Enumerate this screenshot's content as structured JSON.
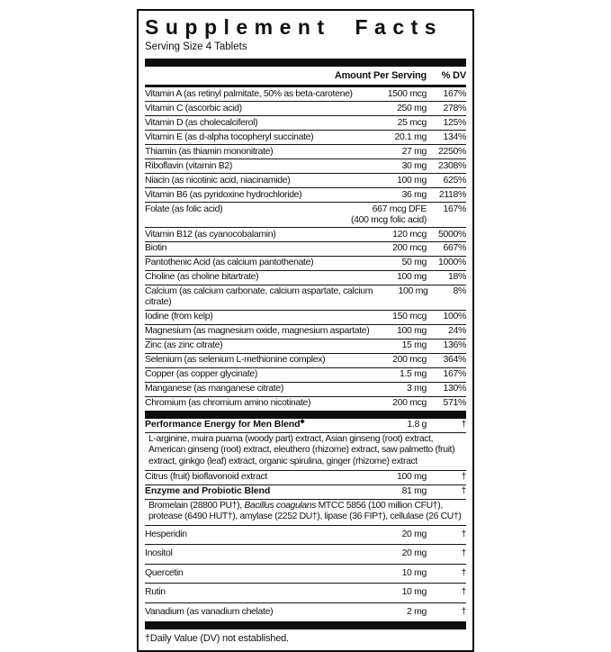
{
  "label": {
    "title": "Supplement Facts",
    "serving_size": "Serving Size 4 Tablets",
    "columns": {
      "amount": "Amount Per Serving",
      "dv": "% DV"
    },
    "footnote": "†Daily Value (DV) not established.",
    "colors": {
      "ink": "#0d0d0d",
      "background": "#ffffff"
    }
  },
  "rows": [
    {
      "t": "n",
      "sep": "none",
      "name": "Vitamin A (as retinyl palmitate, 50% as beta-carotene)",
      "amt": "1500 mcg",
      "dv": "167%"
    },
    {
      "t": "n",
      "sep": "hair",
      "name": "Vitamin C (ascorbic acid)",
      "amt": "250 mg",
      "dv": "278%"
    },
    {
      "t": "n",
      "sep": "hair",
      "name": "Vitamin D (as cholecalciferol)",
      "amt": "25 mcg",
      "dv": "125%"
    },
    {
      "t": "n",
      "sep": "hair",
      "name": "Vitamin E (as d-alpha tocopheryl succinate)",
      "amt": "20.1 mg",
      "dv": "134%"
    },
    {
      "t": "n",
      "sep": "hair",
      "name": "Thiamin (as thiamin mononitrate)",
      "amt": "27 mg",
      "dv": "2250%"
    },
    {
      "t": "n",
      "sep": "hair",
      "name": "Riboflavin (vitamin B2)",
      "amt": "30 mg",
      "dv": "2308%"
    },
    {
      "t": "n",
      "sep": "hair",
      "name": "Niacin (as nicotinic acid, niacinamide)",
      "amt": "100 mg",
      "dv": "625%"
    },
    {
      "t": "n",
      "sep": "hair",
      "name": "Vitamin B6 (as pyridoxine hydrochloride)",
      "amt": "36 mg",
      "dv": "2118%"
    },
    {
      "t": "n",
      "sep": "hair",
      "name": "Folate (as folic acid)",
      "amt": "667 mcg DFE",
      "amt2": "(400 mcg folic acid)",
      "dv": "167%"
    },
    {
      "t": "n",
      "sep": "hair",
      "name": "Vitamin B12 (as cyanocobalamin)",
      "amt": "120 mcg",
      "dv": "5000%"
    },
    {
      "t": "n",
      "sep": "hair",
      "name": "Biotin",
      "amt": "200 mcg",
      "dv": "667%"
    },
    {
      "t": "n",
      "sep": "hair",
      "name": "Pantothenic Acid (as calcium pantothenate)",
      "amt": "50 mg",
      "dv": "1000%"
    },
    {
      "t": "n",
      "sep": "hair",
      "name": "Choline (as choline bitartrate)",
      "amt": "100 mg",
      "dv": "18%"
    },
    {
      "t": "n",
      "sep": "hair",
      "name": "Calcium (as calcium carbonate, calcium aspartate, calcium citrate)",
      "amt": "100 mg",
      "dv": "8%"
    },
    {
      "t": "n",
      "sep": "hair",
      "name": "Iodine (from kelp)",
      "amt": "150 mcg",
      "dv": "100%"
    },
    {
      "t": "n",
      "sep": "hair",
      "name": "Magnesium (as magnesium oxide, magnesium aspartate)",
      "amt": "100 mg",
      "dv": "24%"
    },
    {
      "t": "n",
      "sep": "hair",
      "name": "Zinc (as zinc citrate)",
      "amt": "15 mg",
      "dv": "136%"
    },
    {
      "t": "n",
      "sep": "hair",
      "name": "Selenium (as selenium L-methionine complex)",
      "amt": "200 mcg",
      "dv": "364%"
    },
    {
      "t": "n",
      "sep": "hair",
      "name": "Copper (as copper glycinate)",
      "amt": "1.5 mg",
      "dv": "167%"
    },
    {
      "t": "n",
      "sep": "hair",
      "name": "Manganese (as manganese citrate)",
      "amt": "3 mg",
      "dv": "130%"
    },
    {
      "t": "n",
      "sep": "hair",
      "name": "Chromium (as chromium amino nicotinate)",
      "amt": "200 mcg",
      "dv": "571%"
    },
    {
      "t": "n",
      "sep": "thick",
      "bold": true,
      "name": "Performance Energy for Men Blend",
      "marker": "◆",
      "amt": "1.8 g",
      "dv": "†"
    },
    {
      "t": "s",
      "sep": "hair",
      "text": "L-arginine, muira puama (woody part) extract, Asian ginseng (root) extract, American ginseng (root) extract, eleuthero (rhizome) extract, saw palmetto (fruit) extract, ginkgo (leaf) extract, organic spirulina, ginger (rhizome) extract"
    },
    {
      "t": "n",
      "sep": "hair",
      "name": "Citrus (fruit) bioflavonoid extract",
      "amt": "100 mg",
      "dv": "†"
    },
    {
      "t": "n",
      "sep": "hair",
      "bold": true,
      "name": "Enzyme and Probiotic Blend",
      "amt": "81 mg",
      "dv": "†"
    },
    {
      "t": "s",
      "sep": "hair",
      "pre": "Bromelain (28800 PU†), ",
      "italic": "Bacillus coagulans",
      "post": " MTCC 5856 (100 million CFU†), protease (6490 HUT†), amylase (2252 DU†), lipase (36 FIP†), cellulase (26 CU†)"
    },
    {
      "t": "n",
      "sep": "hair",
      "pad": true,
      "name": "Hesperidin",
      "amt": "20 mg",
      "dv": "†"
    },
    {
      "t": "n",
      "sep": "hair",
      "pad": true,
      "name": "Inositol",
      "amt": "20 mg",
      "dv": "†"
    },
    {
      "t": "n",
      "sep": "hair",
      "pad": true,
      "name": "Quercetin",
      "amt": "10 mg",
      "dv": "†"
    },
    {
      "t": "n",
      "sep": "hair",
      "pad": true,
      "name": "Rutin",
      "amt": "10 mg",
      "dv": "†"
    },
    {
      "t": "n",
      "sep": "hair",
      "pad": true,
      "name": "Vanadium (as vanadium chelate)",
      "amt": "2 mg",
      "dv": "†"
    }
  ]
}
